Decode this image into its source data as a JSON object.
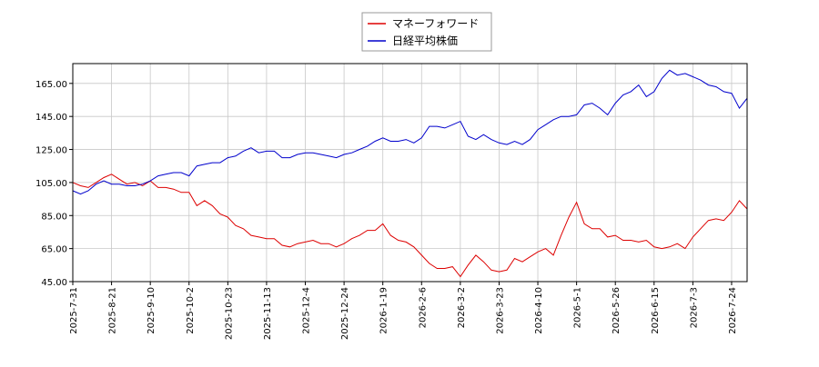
{
  "chart_data": {
    "type": "line",
    "categories": [
      "2025-7-31",
      null,
      null,
      null,
      null,
      "2025-8-21",
      null,
      null,
      null,
      null,
      "2025-9-10",
      null,
      null,
      null,
      null,
      "2025-10-2",
      null,
      null,
      null,
      null,
      "2025-10-23",
      null,
      null,
      null,
      null,
      "2025-11-13",
      null,
      null,
      null,
      null,
      "2025-12-4",
      null,
      null,
      null,
      null,
      "2025-12-24",
      null,
      null,
      null,
      null,
      "2026-1-19",
      null,
      null,
      null,
      null,
      "2026-2-6",
      null,
      null,
      null,
      null,
      "2026-3-2",
      null,
      null,
      null,
      null,
      "2026-3-23",
      null,
      null,
      null,
      null,
      "2026-4-10",
      null,
      null,
      null,
      null,
      "2026-5-1",
      null,
      null,
      null,
      null,
      "2026-5-26",
      null,
      null,
      null,
      null,
      "2026-6-15",
      null,
      null,
      null,
      null,
      "2026-7-3",
      null,
      null,
      null,
      null,
      "2026-7-24",
      null,
      null
    ],
    "series": [
      {
        "name": "マネーフォワード",
        "color": "#dd0000",
        "values": [
          105,
          103,
          102,
          105,
          108,
          110,
          107,
          104,
          105,
          103,
          106,
          102,
          102,
          101,
          99,
          99,
          91,
          94,
          91,
          86,
          84,
          79,
          77,
          73,
          72,
          71,
          71,
          67,
          66,
          68,
          69,
          70,
          68,
          68,
          66,
          68,
          71,
          73,
          76,
          76,
          80,
          73,
          70,
          69,
          66,
          61,
          56,
          53,
          53,
          54,
          48,
          55,
          61,
          57,
          52,
          51,
          52,
          59,
          57,
          60,
          63,
          65,
          61,
          73,
          84,
          93,
          80,
          77,
          77,
          72,
          73,
          70,
          70,
          69,
          70,
          66,
          65,
          66,
          68,
          65,
          72,
          77,
          82,
          83,
          82,
          87,
          94,
          89
        ]
      },
      {
        "name": "日経平均株価",
        "color": "#0000cc",
        "values": [
          100,
          98,
          100,
          104,
          106,
          104,
          104,
          103,
          103,
          104,
          106,
          109,
          110,
          111,
          111,
          109,
          115,
          116,
          117,
          117,
          120,
          121,
          124,
          126,
          123,
          124,
          124,
          120,
          120,
          122,
          123,
          123,
          122,
          121,
          120,
          122,
          123,
          125,
          127,
          130,
          132,
          130,
          130,
          131,
          129,
          132,
          139,
          139,
          138,
          140,
          142,
          133,
          131,
          134,
          131,
          129,
          128,
          130,
          128,
          131,
          137,
          140,
          143,
          145,
          145,
          146,
          152,
          153,
          150,
          146,
          153,
          158,
          160,
          164,
          157,
          160,
          168,
          173,
          170,
          171,
          169,
          167,
          164,
          163,
          160,
          159,
          150,
          156
        ]
      }
    ],
    "ylim": [
      45,
      177
    ],
    "yticks": [
      {
        "value": 45,
        "label": "45.00"
      },
      {
        "value": 65,
        "label": "65.00"
      },
      {
        "value": 85,
        "label": "85.00"
      },
      {
        "value": 105,
        "label": "105.00"
      },
      {
        "value": 125,
        "label": "125.00"
      },
      {
        "value": 145,
        "label": "145.00"
      },
      {
        "value": 165,
        "label": "165.00"
      }
    ],
    "grid": true
  }
}
